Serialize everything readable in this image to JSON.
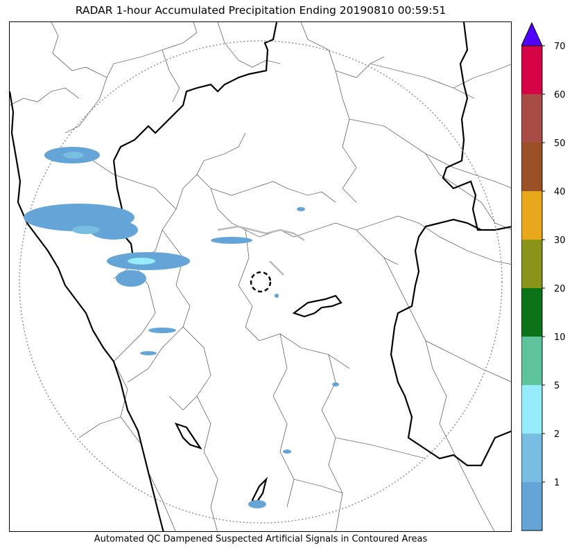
{
  "title": "RADAR 1-hour Accumulated Precipitation Ending 20190810 00:59:51",
  "caption": "Automated QC Dampened Suspected Artificial Signals in Contoured Areas",
  "colors": {
    "state_border": "#000000",
    "district_border": "#333333",
    "range_ring": "#888888",
    "qc_contour": "#bbbbbb"
  },
  "colorbar": {
    "ticks": [
      "1",
      "2",
      "5",
      "10",
      "20",
      "30",
      "40",
      "50",
      "60",
      "70"
    ],
    "bins": [
      {
        "color": "#64a4d7"
      },
      {
        "color": "#78bee3"
      },
      {
        "color": "#96ecfb"
      },
      {
        "color": "#5ec49c"
      },
      {
        "color": "#0c7418"
      },
      {
        "color": "#8a9418"
      },
      {
        "color": "#e8a81c"
      },
      {
        "color": "#9c5026"
      },
      {
        "color": "#a84c46"
      },
      {
        "color": "#d40446"
      }
    ],
    "extend_color": "#5000ff"
  }
}
